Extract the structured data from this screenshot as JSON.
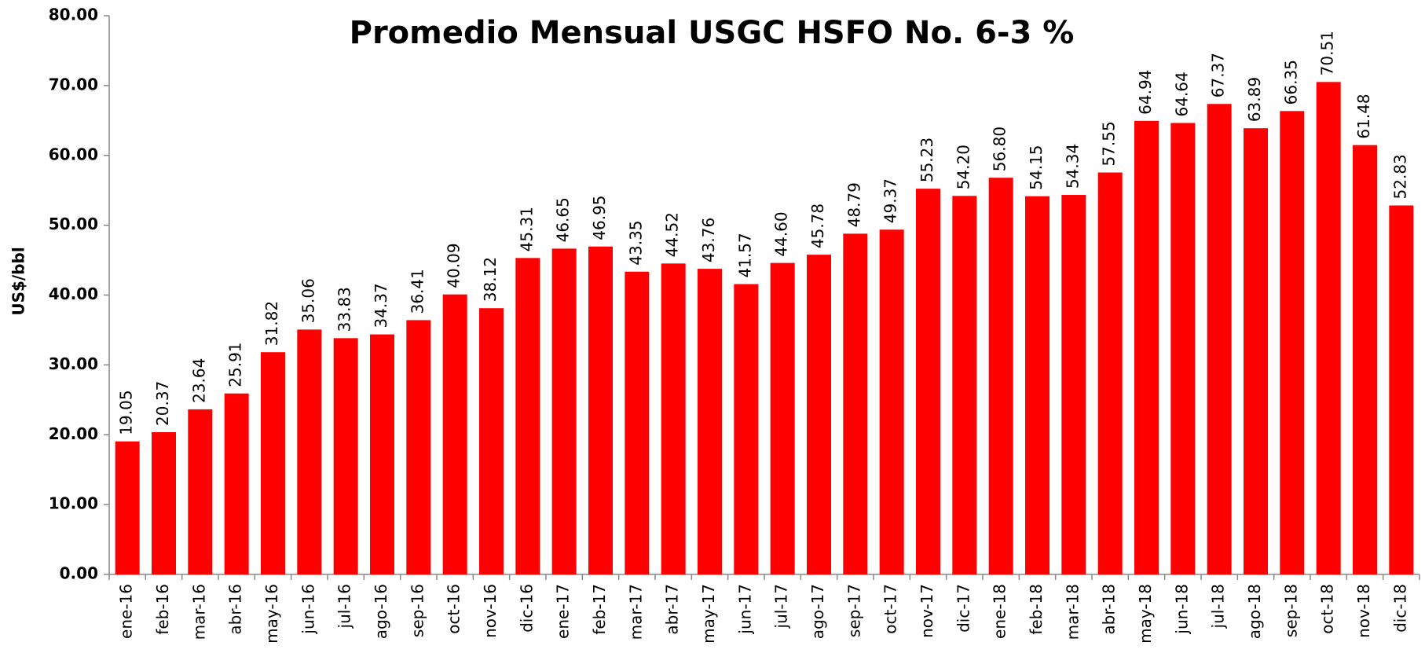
{
  "chart_data": {
    "type": "bar",
    "title": "Promedio Mensual USGC HSFO No. 6-3 %",
    "ylabel": "US$/bbl",
    "color": "#ff0000",
    "categories": [
      "ene-16",
      "feb-16",
      "mar-16",
      "abr-16",
      "may-16",
      "jun-16",
      "jul-16",
      "ago-16",
      "sep-16",
      "oct-16",
      "nov-16",
      "dic-16",
      "ene-17",
      "feb-17",
      "mar-17",
      "abr-17",
      "may-17",
      "jun-17",
      "jul-17",
      "ago-17",
      "sep-17",
      "oct-17",
      "nov-17",
      "dic-17",
      "ene-18",
      "feb-18",
      "mar-18",
      "abr-18",
      "may-18",
      "jun-18",
      "jul-18",
      "ago-18",
      "sep-18",
      "oct-18",
      "nov-18",
      "dic-18"
    ],
    "values": [
      19.05,
      20.37,
      23.64,
      25.91,
      31.82,
      35.06,
      33.83,
      34.37,
      36.41,
      40.09,
      38.12,
      45.31,
      46.65,
      46.95,
      43.35,
      44.52,
      43.76,
      41.57,
      44.6,
      45.78,
      48.79,
      49.37,
      55.23,
      54.2,
      56.8,
      54.15,
      54.34,
      57.55,
      64.94,
      64.64,
      67.37,
      63.89,
      66.35,
      70.51,
      61.48,
      52.83
    ],
    "value_labels": [
      "19.05",
      "20.37",
      "23.64",
      "25.91",
      "31.82",
      "35.06",
      "33.83",
      "34.37",
      "36.41",
      "40.09",
      "38.12",
      "45.31",
      "46.65",
      "46.95",
      "43.35",
      "44.52",
      "43.76",
      "41.57",
      "44.60",
      "45.78",
      "48.79",
      "49.37",
      "55.23",
      "54.20",
      "56.80",
      "54.15",
      "54.34",
      "57.55",
      "64.94",
      "64.64",
      "67.37",
      "63.89",
      "66.35",
      "70.51",
      "61.48",
      "52.83"
    ],
    "ylim": [
      0,
      80
    ],
    "yticks": [
      {
        "value": 0,
        "label": "0.00"
      },
      {
        "value": 10,
        "label": "10.00"
      },
      {
        "value": 20,
        "label": "20.00"
      },
      {
        "value": 30,
        "label": "30.00"
      },
      {
        "value": 40,
        "label": "40.00"
      },
      {
        "value": 50,
        "label": "50.00"
      },
      {
        "value": 60,
        "label": "60.00"
      },
      {
        "value": 70,
        "label": "70.00"
      },
      {
        "value": 80,
        "label": "80.00"
      }
    ],
    "grid": false
  }
}
